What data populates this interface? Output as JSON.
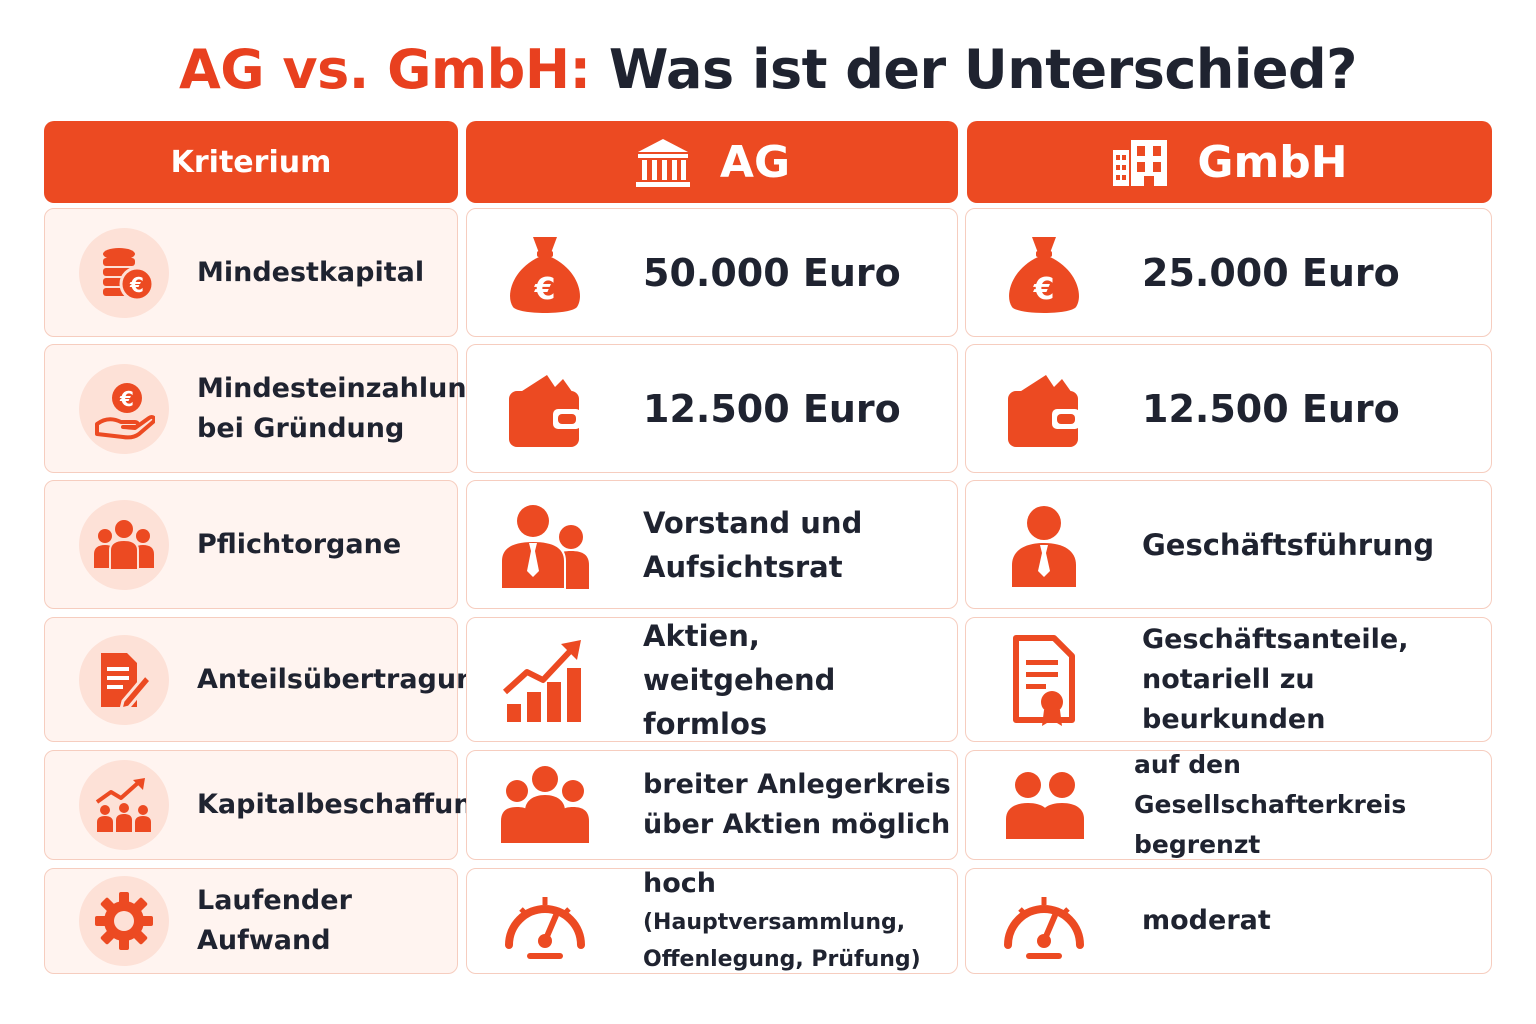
{
  "title": {
    "part1": "AG vs. GmbH:",
    "part2": "Was ist der Unterschied?"
  },
  "headers": {
    "criterion": "Kriterium",
    "ag": "AG",
    "gmbh": "GmbH"
  },
  "rows": [
    {
      "criterion": "Mindestkapital",
      "ag": "50.000 Euro",
      "gmbh": "25.000 Euro"
    },
    {
      "criterion_line1": "Mindesteinzahlung",
      "criterion_line2": "bei Gründung",
      "ag": "12.500 Euro",
      "gmbh": "12.500 Euro"
    },
    {
      "criterion": "Pflichtorgane",
      "ag_line1": "Vorstand und",
      "ag_line2": "Aufsichtsrat",
      "gmbh": "Geschäftsführung"
    },
    {
      "criterion": "Anteilsübertragung",
      "ag_line1": "Aktien,",
      "ag_line2": "weitgehend formlos",
      "gmbh_line1": "Geschäftsanteile,",
      "gmbh_line2": "notariell zu beurkunden"
    },
    {
      "criterion": "Kapitalbeschaffung",
      "ag_line1": "breiter Anlegerkreis",
      "ag_line2": "über Aktien möglich",
      "gmbh_line1": "auf den Gesellschafterkreis",
      "gmbh_line2": "begrenzt"
    },
    {
      "criterion": "Laufender Aufwand",
      "ag_main": "hoch",
      "ag_detail1": "(Hauptversammlung,",
      "ag_detail2": "Offenlegung, Prüfung)",
      "gmbh": "moderat"
    }
  ],
  "icons": {
    "header_ag": "bank-building-icon",
    "header_gmbh": "office-building-icon",
    "criteria": [
      "coins-euro-icon",
      "hand-euro-icon",
      "group-icon",
      "document-pen-icon",
      "growth-people-icon",
      "gear-icon"
    ],
    "ag": [
      "money-bag-icon",
      "wallet-icon",
      "two-persons-icon",
      "bar-chart-up-icon",
      "three-people-icon",
      "gauge-icon"
    ],
    "gmbh": [
      "money-bag-icon",
      "wallet-icon",
      "single-person-icon",
      "certificate-icon",
      "two-people-icon",
      "gauge-icon"
    ]
  },
  "colors": {
    "accent": "#ec4a22",
    "text": "#1f2330",
    "criterion_bg": "#fff4f0",
    "icon_circle": "#fde1d7",
    "border": "#f6cdbf"
  }
}
